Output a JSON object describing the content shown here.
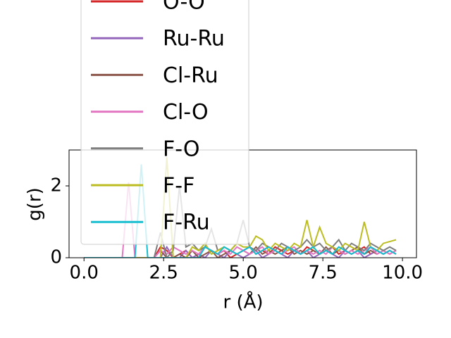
{
  "chart_data": {
    "type": "line",
    "xlabel": "r (Å)",
    "ylabel": "g(r)",
    "xlim": [
      -0.47,
      10.44
    ],
    "ylim": [
      0,
      3
    ],
    "xticks": [
      {
        "value": 0,
        "label": "0.0"
      },
      {
        "value": 2.5,
        "label": "2.5"
      },
      {
        "value": 5,
        "label": "5.0"
      },
      {
        "value": 7.5,
        "label": "7.5"
      },
      {
        "value": 10,
        "label": "10.0"
      }
    ],
    "yticks": [
      0,
      2
    ],
    "x": [
      0,
      0.2,
      0.4,
      0.6,
      0.8,
      1,
      1.2,
      1.4,
      1.6,
      1.8,
      2,
      2.2,
      2.4,
      2.6,
      2.8,
      3,
      3.2,
      3.4,
      3.6,
      3.8,
      4,
      4.2,
      4.4,
      4.6,
      4.8,
      5,
      5.2,
      5.4,
      5.6,
      5.8,
      6,
      6.2,
      6.4,
      6.6,
      6.8,
      7,
      7.2,
      7.4,
      7.6,
      7.8,
      8,
      8.2,
      8.4,
      8.6,
      8.8,
      9,
      9.2,
      9.4,
      9.6,
      9.8
    ],
    "series": [
      {
        "name": "O-O",
        "color": "#d62728",
        "values": [
          0,
          0,
          0,
          0,
          0,
          0,
          0,
          0,
          0,
          0,
          0,
          0,
          0.3,
          0.2,
          0,
          0.1,
          0.2,
          0,
          0.1,
          0.3,
          0.2,
          0.1,
          0.2,
          0,
          0.1,
          0.2,
          0.3,
          0.1,
          0.2,
          0.1,
          0.3,
          0.2,
          0.1,
          0.2,
          0.1,
          0.3,
          0.2,
          0.1,
          0.2,
          0.3,
          0.1,
          0.2,
          0.1,
          0.2,
          0.3,
          0.1,
          0.2,
          0.1,
          0.2,
          0.1
        ]
      },
      {
        "name": "Ru-Ru",
        "color": "#9467bd",
        "values": [
          0,
          0,
          0,
          0,
          0,
          0,
          0,
          0,
          0,
          0,
          0,
          0,
          0,
          0.3,
          0,
          0,
          0.2,
          0,
          0.1,
          0,
          0.2,
          0.1,
          0,
          0.2,
          0.1,
          0,
          0.1,
          0.2,
          0,
          0.1,
          0.2,
          0.1,
          0,
          0.2,
          0.1,
          0.2,
          0,
          0.1,
          0.2,
          0.1,
          0,
          0.2,
          0.1,
          0.2,
          0,
          0.1,
          0.2,
          0.1,
          0.2,
          0.1
        ]
      },
      {
        "name": "Cl-Ru",
        "color": "#8c564b",
        "values": [
          0,
          0,
          0,
          0,
          0,
          0,
          0,
          0,
          0,
          0,
          0,
          0,
          0.2,
          0,
          0,
          0.1,
          0,
          0.2,
          0,
          0.1,
          0.2,
          0,
          0.1,
          0.2,
          0.1,
          0.2,
          0.1,
          0.3,
          0.1,
          0.2,
          0.1,
          0.2,
          0.3,
          0.1,
          0.2,
          0.1,
          0.2,
          0.1,
          0.3,
          0.1,
          0.2,
          0.1,
          0.2,
          0.3,
          0.1,
          0.2,
          0.1,
          0.2,
          0.1,
          0.2
        ]
      },
      {
        "name": "Cl-O",
        "color": "#e377c2",
        "values": [
          0,
          0,
          0,
          0,
          0,
          0,
          0,
          2.1,
          0,
          0,
          0,
          0,
          0.2,
          0.1,
          0.3,
          0.2,
          0.1,
          0.2,
          0.1,
          0.3,
          0.2,
          0.1,
          0.2,
          0.1,
          0.3,
          0.2,
          0.1,
          0.2,
          0.3,
          0.1,
          0.2,
          0.1,
          0.2,
          0.3,
          0.1,
          0.2,
          0.1,
          0.2,
          0.1,
          0.3,
          0.2,
          0.1,
          0.2,
          0.1,
          0.2,
          0.3,
          0.1,
          0.2,
          0.1,
          0.2
        ]
      },
      {
        "name": "F-O",
        "color": "#7f7f7f",
        "values": [
          0,
          0,
          0,
          0,
          0,
          0,
          0,
          0,
          0,
          0,
          0,
          0,
          0.7,
          0,
          0.2,
          2.0,
          0.3,
          0.4,
          0.2,
          0.3,
          0.8,
          0.2,
          0.3,
          0.2,
          0.4,
          1.05,
          0.3,
          0.2,
          0.4,
          0.3,
          0.2,
          0.4,
          0.3,
          0.2,
          0.3,
          0.5,
          0.3,
          0.4,
          0.2,
          0.3,
          0.5,
          0.2,
          0.4,
          0.3,
          0.2,
          0.4,
          0.3,
          0.2,
          0.3,
          0.2
        ]
      },
      {
        "name": "F-F",
        "color": "#bcbd22",
        "values": [
          0,
          0,
          0,
          0,
          0,
          0,
          0,
          0,
          0,
          0,
          0,
          0,
          0,
          2.8,
          0,
          0,
          0,
          0.3,
          0.2,
          0.4,
          0.1,
          0.2,
          0.3,
          0.2,
          0.4,
          0.3,
          0.3,
          0.6,
          0.5,
          0.2,
          0.4,
          0.3,
          0.2,
          0.4,
          0.3,
          1.05,
          0.3,
          0.85,
          0.4,
          0.3,
          0.2,
          0.4,
          0.3,
          0.2,
          1.0,
          0.3,
          0.2,
          0.4,
          0.45,
          0.5
        ]
      },
      {
        "name": "F-Ru",
        "color": "#17becf",
        "values": [
          0,
          0,
          0,
          0,
          0,
          0,
          0,
          0,
          0,
          2.6,
          0,
          0,
          0,
          0,
          0,
          0,
          0,
          0,
          0,
          0.3,
          0.2,
          0.1,
          0.3,
          0.2,
          0.1,
          0.2,
          0.3,
          0.1,
          0.2,
          0.3,
          0.2,
          0.1,
          0.3,
          0.2,
          0.1,
          0.2,
          0.3,
          0.1,
          0.2,
          0.1,
          0.3,
          0.2,
          0.1,
          0.2,
          0.1,
          0.3,
          0.2,
          0.1,
          0.2,
          0.1
        ]
      }
    ]
  }
}
